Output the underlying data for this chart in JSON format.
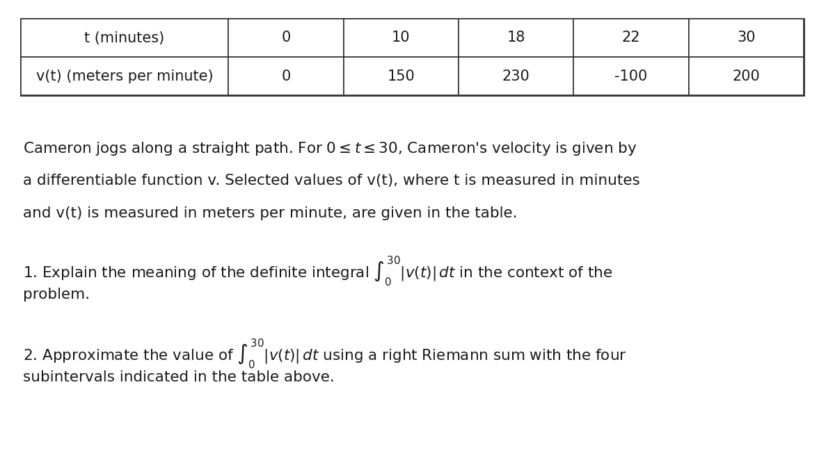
{
  "table_headers": [
    "t (minutes)",
    "0",
    "10",
    "18",
    "22",
    "30"
  ],
  "table_row2": [
    "v(t) (meters per minute)",
    "0",
    "150",
    "230",
    "-100",
    "200"
  ],
  "background_color": "#ffffff",
  "text_color": "#1a1a1a",
  "para_line1": "Cameron jogs along a straight path. For $0 \\leq t \\leq 30$, Cameron's velocity is given by",
  "para_line2": "a differentiable function v. Selected values of v(t), where t is measured in minutes",
  "para_line3": "and v(t) is measured in meters per minute, are given in the table.",
  "q1_line1": "1. Explain the meaning of the definite integral $\\int_0^{30} |v(t)| \\,dt$ in the context of the",
  "q1_line2": "problem.",
  "q2_line1": "2. Approximate the value of $\\int_0^{30} |v(t)| \\,dt$ using a right Riemann sum with the four",
  "q2_line2": "subintervals indicated in the table above.",
  "table_font_size": 15,
  "body_font_size": 15.5
}
